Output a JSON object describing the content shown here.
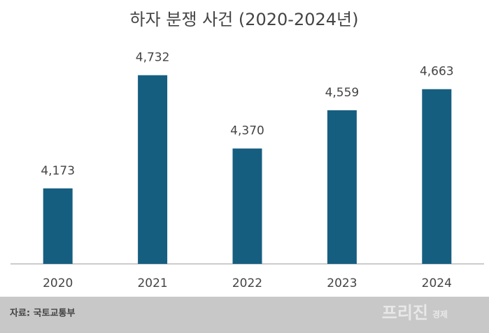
{
  "chart_data": {
    "type": "bar",
    "title": "하자 분쟁 사건 (2020-2024년)",
    "categories": [
      "2020",
      "2021",
      "2022",
      "2023",
      "2024"
    ],
    "values": [
      4173,
      4732,
      4370,
      4559,
      4663
    ],
    "value_labels": [
      "4,173",
      "4,732",
      "4,370",
      "4,559",
      "4,663"
    ],
    "color": "#165e80",
    "ylim": [
      3800,
      5000
    ]
  },
  "footer": {
    "source": "자료: 국토교통부",
    "brand": "프리진",
    "brand_sub": "경제"
  }
}
